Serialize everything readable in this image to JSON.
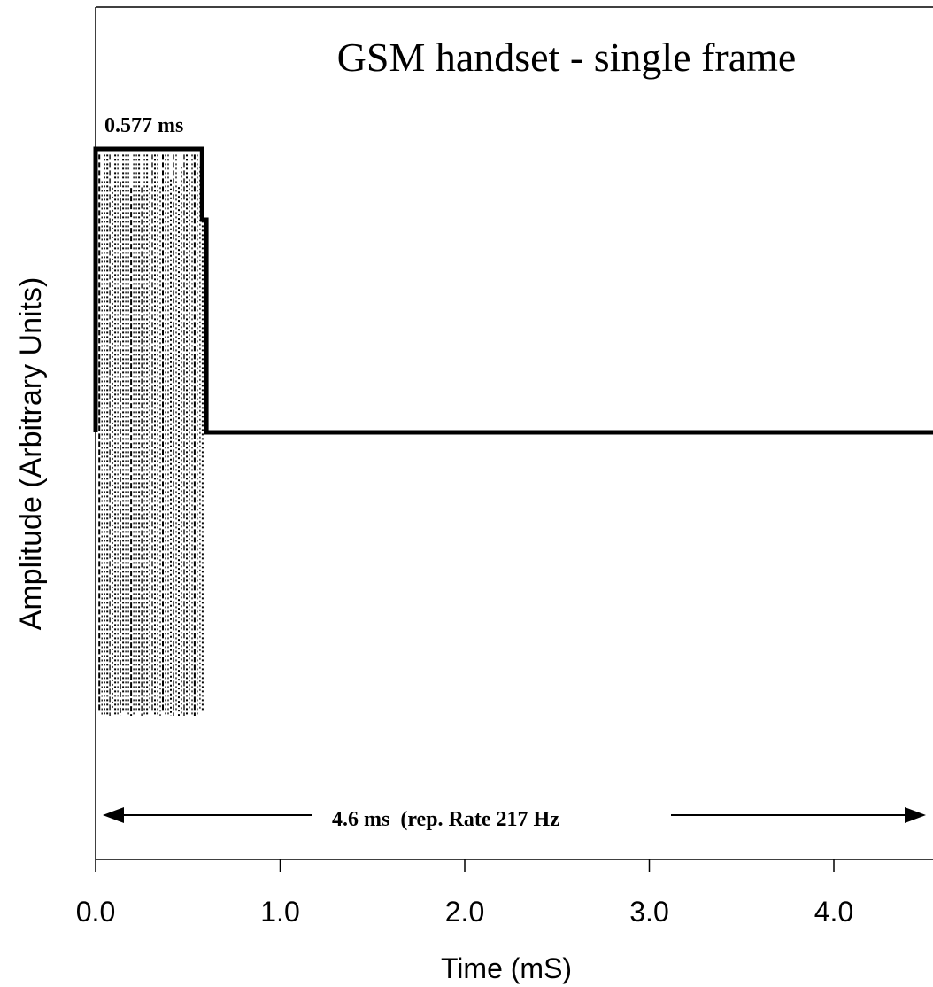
{
  "chart_data": {
    "type": "line",
    "title": "GSM handset - single frame",
    "xlabel": "Time (mS)",
    "ylabel": "Amplitude (Arbitrary Units)",
    "xlim": [
      0,
      4.6
    ],
    "x_ticks": [
      "0.0",
      "1.0",
      "2.0",
      "3.0",
      "4.0"
    ],
    "x_tick_values": [
      0,
      1,
      2,
      3,
      4
    ],
    "grid": false,
    "series": [
      {
        "style": "solid-envelope",
        "x": [
          0,
          0,
          0.577,
          0.577,
          0.6,
          0.6,
          4.6
        ],
        "y": [
          0,
          1,
          1,
          0.75,
          0.75,
          0,
          0
        ]
      },
      {
        "style": "dotted-carrier",
        "x_start": 0.02,
        "x_end": 0.58,
        "y_top": 0.98,
        "y_bottom": -1.0
      }
    ],
    "annotations": {
      "burst_width": "0.577 ms",
      "period": "4.6 ms  (rep. Rate 217 Hz"
    }
  }
}
